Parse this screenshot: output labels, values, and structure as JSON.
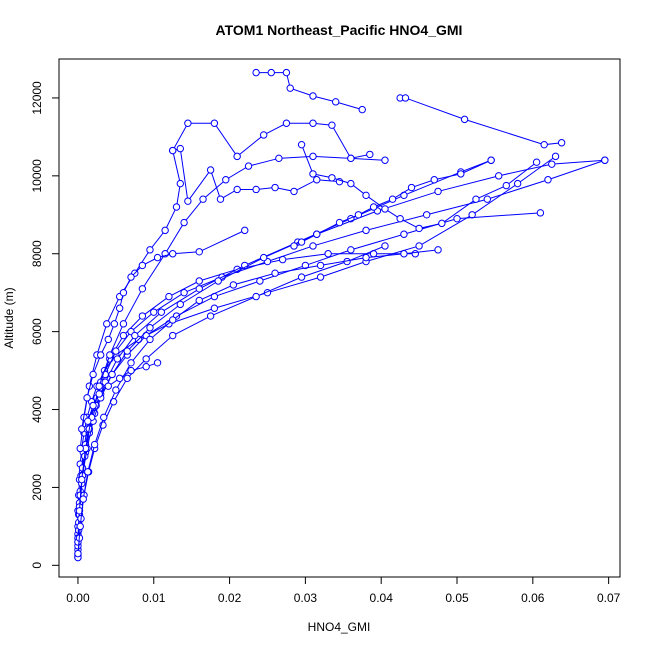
{
  "chart_data": {
    "type": "line",
    "title": "ATOM1 Northeast_Pacific HNO4_GMI",
    "xlabel": "HNO4_GMI",
    "ylabel": "Altitude (m)",
    "xlim": [
      -0.0025,
      0.0715
    ],
    "ylim": [
      -300,
      13000
    ],
    "xticks": [
      0.0,
      0.01,
      0.02,
      0.03,
      0.04,
      0.05,
      0.06,
      0.07
    ],
    "xtick_labels": [
      "0.00",
      "0.01",
      "0.02",
      "0.03",
      "0.04",
      "0.05",
      "0.06",
      "0.07"
    ],
    "yticks": [
      0,
      2000,
      4000,
      6000,
      8000,
      10000,
      12000
    ],
    "ytick_labels": [
      "0",
      "2000",
      "4000",
      "6000",
      "8000",
      "10000",
      "12000"
    ],
    "grid": false,
    "series_color": "#0000ff",
    "marker": "open-circle",
    "series": [
      {
        "x": [
          0.0,
          0.0,
          0.0,
          0.0,
          0.0001,
          0.0002,
          0.0003,
          0.0005,
          0.0008,
          0.0012,
          0.0018,
          0.0025,
          0.0035,
          0.005,
          0.008,
          0.012,
          0.018,
          0.025,
          0.032,
          0.038,
          0.045,
          0.052,
          0.058,
          0.063
        ],
        "y": [
          200,
          600,
          1000,
          1400,
          1800,
          2200,
          2600,
          3000,
          3400,
          3800,
          4200,
          4600,
          5000,
          5400,
          5800,
          6200,
          6600,
          7000,
          7400,
          7800,
          8200,
          9000,
          9800,
          10500
        ]
      },
      {
        "x": [
          0.0,
          0.0,
          0.0001,
          0.0003,
          0.0006,
          0.001,
          0.0015,
          0.0022,
          0.003,
          0.0045,
          0.0065,
          0.009,
          0.013,
          0.018,
          0.024,
          0.03,
          0.036,
          0.043,
          0.05,
          0.061
        ],
        "y": [
          300,
          800,
          1300,
          1900,
          2400,
          2900,
          3400,
          3900,
          4400,
          4900,
          5400,
          5900,
          6400,
          6900,
          7300,
          7700,
          8100,
          8500,
          8900,
          9050
        ]
      },
      {
        "x": [
          0.0,
          0.0001,
          0.0002,
          0.0004,
          0.0007,
          0.0012,
          0.002,
          0.003,
          0.0042,
          0.006,
          0.0085,
          0.012,
          0.016,
          0.021,
          0.027,
          0.033,
          0.039,
          0.0445
        ],
        "y": [
          250,
          900,
          1600,
          2300,
          2900,
          3500,
          4100,
          4700,
          5300,
          5900,
          6400,
          6900,
          7300,
          7600,
          7850,
          8000,
          8000,
          8000
        ]
      },
      {
        "x": [
          0.0,
          0.0001,
          0.0003,
          0.0006,
          0.001,
          0.0016,
          0.0025,
          0.0036,
          0.005,
          0.007,
          0.01,
          0.014,
          0.019,
          0.025,
          0.031,
          0.038,
          0.046,
          0.054,
          0.062,
          0.0695
        ],
        "y": [
          400,
          1100,
          1800,
          2500,
          3100,
          3700,
          4300,
          4900,
          5500,
          6000,
          6500,
          7000,
          7400,
          7800,
          8200,
          8600,
          9000,
          9400,
          9900,
          10400
        ]
      },
      {
        "x": [
          0.0,
          0.0002,
          0.0005,
          0.0009,
          0.0015,
          0.0024,
          0.0036,
          0.0052,
          0.0075,
          0.011,
          0.016,
          0.022,
          0.029,
          0.036,
          0.043,
          0.0505,
          0.0545
        ],
        "y": [
          500,
          1300,
          2100,
          2800,
          3500,
          4100,
          4700,
          5300,
          5900,
          6500,
          7100,
          7700,
          8300,
          8900,
          9500,
          10100,
          10400
        ]
      },
      {
        "x": [
          0.0,
          0.0002,
          0.0006,
          0.0012,
          0.002,
          0.003,
          0.0045,
          0.0065,
          0.0095,
          0.0135,
          0.0185,
          0.0245,
          0.0315,
          0.0395,
          0.0475,
          0.0555,
          0.0625,
          0.0695
        ],
        "y": [
          700,
          1500,
          2300,
          3000,
          3700,
          4300,
          4900,
          5500,
          6100,
          6700,
          7300,
          7900,
          8500,
          9100,
          9600,
          10000,
          10300,
          10400
        ]
      },
      {
        "x": [
          0.0,
          0.0002,
          0.0005,
          0.001,
          0.0018,
          0.0028,
          0.0042,
          0.006,
          0.0085,
          0.0115,
          0.014,
          0.0165,
          0.0195,
          0.0225,
          0.0265,
          0.031,
          0.036,
          0.0405
        ],
        "y": [
          600,
          1400,
          2200,
          3000,
          3800,
          4600,
          5400,
          6200,
          7100,
          8000,
          8800,
          9400,
          9900,
          10250,
          10450,
          10500,
          10450,
          10400
        ]
      },
      {
        "x": [
          0.0003,
          0.0008,
          0.0015,
          0.0025,
          0.0038,
          0.0055,
          0.0075,
          0.0095,
          0.0115,
          0.013,
          0.0135,
          0.0125,
          0.0145,
          0.018,
          0.021,
          0.0245,
          0.0275,
          0.031,
          0.0335,
          0.036,
          0.0385
        ],
        "y": [
          3000,
          3800,
          4600,
          5400,
          6200,
          6900,
          7500,
          8100,
          8600,
          9200,
          9800,
          10650,
          11350,
          11350,
          10500,
          11050,
          11350,
          11350,
          11300,
          10450,
          10550
        ]
      },
      {
        "x": [
          0.0235,
          0.0255,
          0.0275,
          0.028,
          0.031,
          0.034,
          0.0375
        ],
        "y": [
          12650,
          12650,
          12650,
          12250,
          12050,
          11900,
          11700
        ]
      },
      {
        "x": [
          0.0425,
          0.0432,
          0.051,
          0.0615,
          0.0638
        ],
        "y": [
          12000,
          12000,
          11450,
          10800,
          10850
        ]
      },
      {
        "x": [
          0.0125,
          0.0135,
          0.0145,
          0.0175,
          0.0188,
          0.021,
          0.0235,
          0.026,
          0.0285,
          0.0315,
          0.0345
        ],
        "y": [
          10650,
          10700,
          9350,
          10150,
          9400,
          9650,
          9650,
          9700,
          9600,
          9900,
          9850
        ]
      },
      {
        "x": [
          0.0295,
          0.031,
          0.0335,
          0.036,
          0.038,
          0.0405,
          0.0425,
          0.045,
          0.048,
          0.0525,
          0.0565,
          0.0605
        ],
        "y": [
          10800,
          10050,
          9950,
          9800,
          9500,
          9150,
          8900,
          8650,
          8780,
          9400,
          9750,
          10350
        ]
      },
      {
        "x": [
          0.0285,
          0.0295,
          0.0315,
          0.0345,
          0.037,
          0.039,
          0.0415,
          0.044,
          0.047,
          0.0505,
          0.0545
        ],
        "y": [
          8200,
          8300,
          8500,
          8800,
          9000,
          9200,
          9400,
          9700,
          9900,
          10050,
          10400
        ]
      },
      {
        "x": [
          0.0005,
          0.0012,
          0.002,
          0.003,
          0.004,
          0.0048,
          0.0055,
          0.006,
          0.007,
          0.0085,
          0.0105,
          0.0125,
          0.016,
          0.022
        ],
        "y": [
          3500,
          4300,
          4900,
          5400,
          5800,
          6200,
          6600,
          7000,
          7400,
          7700,
          7900,
          8000,
          8050,
          8600
        ]
      },
      {
        "x": [
          0.0,
          0.0002,
          0.0004,
          0.0008,
          0.0014,
          0.0022,
          0.0033,
          0.0047,
          0.0065,
          0.009,
          0.0125,
          0.0175,
          0.0235,
          0.0295,
          0.0355,
          0.0405
        ],
        "y": [
          200,
          700,
          1200,
          1800,
          2400,
          3000,
          3600,
          4200,
          4800,
          5300,
          5900,
          6400,
          6900,
          7400,
          7800,
          8200
        ]
      },
      {
        "x": [
          0.0,
          0.0003,
          0.0007,
          0.0013,
          0.0022,
          0.0034,
          0.005,
          0.007,
          0.0095,
          0.0125,
          0.016,
          0.0205,
          0.026,
          0.032,
          0.038,
          0.043,
          0.0475
        ],
        "y": [
          300,
          1000,
          1700,
          2400,
          3100,
          3800,
          4500,
          5200,
          5800,
          6300,
          6800,
          7200,
          7500,
          7700,
          7900,
          8000,
          8100
        ]
      },
      {
        "x": [
          0.0013,
          0.002,
          0.0028,
          0.004,
          0.0055,
          0.007,
          0.009,
          0.0105
        ],
        "y": [
          3700,
          4100,
          4400,
          4600,
          4800,
          5000,
          5100,
          5200
        ]
      }
    ]
  }
}
